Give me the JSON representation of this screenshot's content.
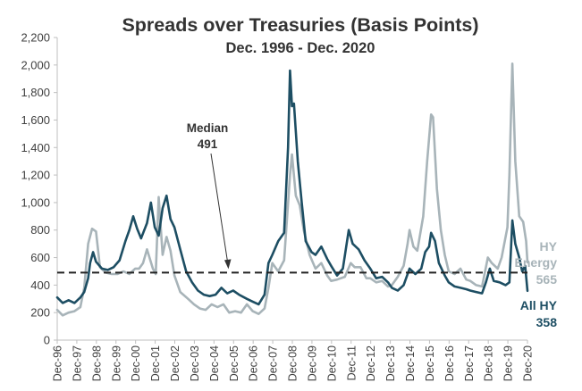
{
  "colors": {
    "all_hy": "#1d4e63",
    "hy_energy": "#a8b4b9",
    "median": "#222222",
    "axis": "#bfbfbf",
    "text": "#333333"
  },
  "chart_data": {
    "type": "line",
    "title": "Spreads over Treasuries (Basis Points)",
    "subtitle": "Dec. 1996 - Dec. 2020",
    "xlabel": "",
    "ylabel": "",
    "ylim": [
      0,
      2200
    ],
    "xlim": [
      1996.92,
      2020.92
    ],
    "grid": false,
    "y_ticks": [
      "0",
      "200",
      "400",
      "600",
      "800",
      "1,000",
      "1,200",
      "1,400",
      "1,600",
      "1,800",
      "2,000",
      "2,200"
    ],
    "x_ticks": [
      "Dec-96",
      "Dec-97",
      "Dec-98",
      "Dec-99",
      "Dec-00",
      "Dec-01",
      "Dec-02",
      "Dec-03",
      "Dec-04",
      "Dec-05",
      "Dec-06",
      "Dec-07",
      "Dec-08",
      "Dec-09",
      "Dec-10",
      "Dec-11",
      "Dec-12",
      "Dec-13",
      "Dec-14",
      "Dec-15",
      "Dec-16",
      "Dec-17",
      "Dec-18",
      "Dec-19",
      "Dec-20"
    ],
    "median": {
      "value": 491,
      "label": "Median",
      "value_label": "491"
    },
    "series": [
      {
        "name": "HY Energy",
        "end_label": [
          "HY",
          "Energy",
          "565"
        ],
        "points": [
          [
            1996.92,
            220
          ],
          [
            1997.2,
            180
          ],
          [
            1997.5,
            200
          ],
          [
            1997.8,
            210
          ],
          [
            1998.1,
            240
          ],
          [
            1998.3,
            380
          ],
          [
            1998.5,
            700
          ],
          [
            1998.7,
            810
          ],
          [
            1998.9,
            790
          ],
          [
            1999.1,
            530
          ],
          [
            1999.4,
            490
          ],
          [
            1999.7,
            480
          ],
          [
            2000.0,
            480
          ],
          [
            2000.3,
            500
          ],
          [
            2000.6,
            480
          ],
          [
            2000.9,
            520
          ],
          [
            2001.1,
            520
          ],
          [
            2001.3,
            560
          ],
          [
            2001.5,
            660
          ],
          [
            2001.8,
            520
          ],
          [
            2001.95,
            480
          ],
          [
            2002.1,
            1040
          ],
          [
            2002.3,
            620
          ],
          [
            2002.5,
            750
          ],
          [
            2002.7,
            650
          ],
          [
            2002.9,
            470
          ],
          [
            2003.2,
            350
          ],
          [
            2003.6,
            300
          ],
          [
            2003.9,
            260
          ],
          [
            2004.2,
            230
          ],
          [
            2004.5,
            220
          ],
          [
            2004.8,
            260
          ],
          [
            2005.1,
            240
          ],
          [
            2005.4,
            260
          ],
          [
            2005.7,
            200
          ],
          [
            2006.0,
            210
          ],
          [
            2006.3,
            200
          ],
          [
            2006.6,
            260
          ],
          [
            2006.9,
            210
          ],
          [
            2007.2,
            190
          ],
          [
            2007.5,
            230
          ],
          [
            2007.7,
            380
          ],
          [
            2007.9,
            560
          ],
          [
            2008.2,
            500
          ],
          [
            2008.5,
            580
          ],
          [
            2008.8,
            1200
          ],
          [
            2008.9,
            1350
          ],
          [
            2009.1,
            1050
          ],
          [
            2009.3,
            980
          ],
          [
            2009.5,
            800
          ],
          [
            2009.8,
            620
          ],
          [
            2010.1,
            520
          ],
          [
            2010.4,
            560
          ],
          [
            2010.7,
            470
          ],
          [
            2010.9,
            430
          ],
          [
            2011.2,
            440
          ],
          [
            2011.6,
            460
          ],
          [
            2011.9,
            560
          ],
          [
            2012.1,
            530
          ],
          [
            2012.4,
            530
          ],
          [
            2012.7,
            450
          ],
          [
            2012.9,
            450
          ],
          [
            2013.2,
            420
          ],
          [
            2013.5,
            430
          ],
          [
            2013.8,
            390
          ],
          [
            2014.0,
            400
          ],
          [
            2014.3,
            460
          ],
          [
            2014.6,
            540
          ],
          [
            2014.8,
            700
          ],
          [
            2014.9,
            800
          ],
          [
            2015.1,
            680
          ],
          [
            2015.3,
            650
          ],
          [
            2015.6,
            900
          ],
          [
            2015.8,
            1300
          ],
          [
            2016.0,
            1640
          ],
          [
            2016.1,
            1620
          ],
          [
            2016.3,
            1100
          ],
          [
            2016.5,
            800
          ],
          [
            2016.7,
            620
          ],
          [
            2016.9,
            500
          ],
          [
            2017.2,
            480
          ],
          [
            2017.5,
            520
          ],
          [
            2017.8,
            440
          ],
          [
            2018.0,
            430
          ],
          [
            2018.3,
            400
          ],
          [
            2018.6,
            390
          ],
          [
            2018.9,
            600
          ],
          [
            2019.1,
            560
          ],
          [
            2019.4,
            520
          ],
          [
            2019.6,
            600
          ],
          [
            2019.9,
            820
          ],
          [
            2020.0,
            1200
          ],
          [
            2020.15,
            2010
          ],
          [
            2020.3,
            1300
          ],
          [
            2020.5,
            900
          ],
          [
            2020.7,
            860
          ],
          [
            2020.85,
            720
          ],
          [
            2020.92,
            565
          ]
        ]
      },
      {
        "name": "All HY",
        "end_label": [
          "All HY",
          "358"
        ],
        "points": [
          [
            1996.92,
            310
          ],
          [
            1997.2,
            270
          ],
          [
            1997.5,
            290
          ],
          [
            1997.8,
            270
          ],
          [
            1998.1,
            310
          ],
          [
            1998.3,
            350
          ],
          [
            1998.5,
            450
          ],
          [
            1998.6,
            560
          ],
          [
            1998.75,
            640
          ],
          [
            1998.9,
            570
          ],
          [
            1999.2,
            520
          ],
          [
            1999.5,
            510
          ],
          [
            1999.8,
            530
          ],
          [
            2000.1,
            580
          ],
          [
            2000.4,
            720
          ],
          [
            2000.6,
            800
          ],
          [
            2000.8,
            900
          ],
          [
            2001.0,
            810
          ],
          [
            2001.2,
            740
          ],
          [
            2001.5,
            850
          ],
          [
            2001.7,
            1000
          ],
          [
            2001.9,
            820
          ],
          [
            2002.1,
            760
          ],
          [
            2002.3,
            960
          ],
          [
            2002.5,
            1050
          ],
          [
            2002.7,
            880
          ],
          [
            2002.9,
            820
          ],
          [
            2003.2,
            660
          ],
          [
            2003.5,
            500
          ],
          [
            2003.8,
            420
          ],
          [
            2004.1,
            360
          ],
          [
            2004.4,
            330
          ],
          [
            2004.7,
            320
          ],
          [
            2005.0,
            330
          ],
          [
            2005.3,
            380
          ],
          [
            2005.6,
            340
          ],
          [
            2005.9,
            360
          ],
          [
            2006.2,
            330
          ],
          [
            2006.6,
            300
          ],
          [
            2006.9,
            280
          ],
          [
            2007.2,
            260
          ],
          [
            2007.5,
            330
          ],
          [
            2007.7,
            560
          ],
          [
            2007.9,
            620
          ],
          [
            2008.2,
            720
          ],
          [
            2008.5,
            780
          ],
          [
            2008.7,
            1400
          ],
          [
            2008.8,
            1960
          ],
          [
            2008.9,
            1700
          ],
          [
            2009.0,
            1720
          ],
          [
            2009.2,
            1300
          ],
          [
            2009.4,
            1000
          ],
          [
            2009.6,
            720
          ],
          [
            2009.9,
            640
          ],
          [
            2010.1,
            620
          ],
          [
            2010.4,
            680
          ],
          [
            2010.7,
            590
          ],
          [
            2010.9,
            540
          ],
          [
            2011.2,
            470
          ],
          [
            2011.5,
            520
          ],
          [
            2011.8,
            800
          ],
          [
            2012.0,
            700
          ],
          [
            2012.3,
            660
          ],
          [
            2012.6,
            580
          ],
          [
            2012.9,
            520
          ],
          [
            2013.2,
            450
          ],
          [
            2013.5,
            460
          ],
          [
            2013.8,
            420
          ],
          [
            2014.0,
            380
          ],
          [
            2014.3,
            360
          ],
          [
            2014.6,
            400
          ],
          [
            2014.9,
            520
          ],
          [
            2015.2,
            480
          ],
          [
            2015.5,
            520
          ],
          [
            2015.7,
            640
          ],
          [
            2015.9,
            680
          ],
          [
            2016.0,
            780
          ],
          [
            2016.2,
            720
          ],
          [
            2016.4,
            560
          ],
          [
            2016.7,
            470
          ],
          [
            2016.9,
            420
          ],
          [
            2017.2,
            390
          ],
          [
            2017.5,
            380
          ],
          [
            2017.8,
            370
          ],
          [
            2018.0,
            360
          ],
          [
            2018.3,
            350
          ],
          [
            2018.6,
            340
          ],
          [
            2018.8,
            420
          ],
          [
            2019.0,
            520
          ],
          [
            2019.2,
            430
          ],
          [
            2019.5,
            420
          ],
          [
            2019.8,
            400
          ],
          [
            2020.0,
            420
          ],
          [
            2020.15,
            870
          ],
          [
            2020.3,
            700
          ],
          [
            2020.5,
            600
          ],
          [
            2020.65,
            500
          ],
          [
            2020.8,
            540
          ],
          [
            2020.92,
            358
          ]
        ]
      }
    ]
  }
}
